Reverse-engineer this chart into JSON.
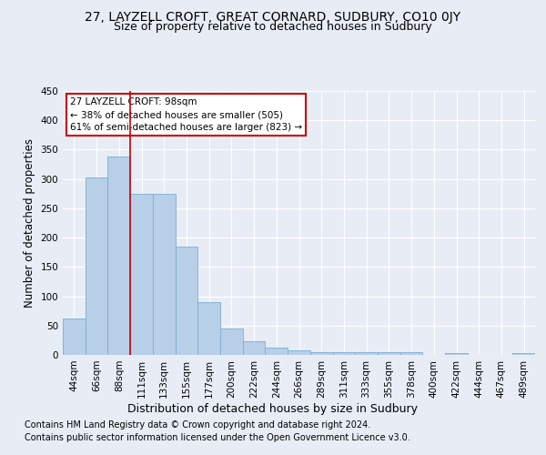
{
  "title": "27, LAYZELL CROFT, GREAT CORNARD, SUDBURY, CO10 0JY",
  "subtitle": "Size of property relative to detached houses in Sudbury",
  "xlabel": "Distribution of detached houses by size in Sudbury",
  "ylabel": "Number of detached properties",
  "categories": [
    "44sqm",
    "66sqm",
    "88sqm",
    "111sqm",
    "133sqm",
    "155sqm",
    "177sqm",
    "200sqm",
    "222sqm",
    "244sqm",
    "266sqm",
    "289sqm",
    "311sqm",
    "333sqm",
    "355sqm",
    "378sqm",
    "400sqm",
    "422sqm",
    "444sqm",
    "467sqm",
    "489sqm"
  ],
  "values": [
    62,
    303,
    338,
    275,
    275,
    185,
    90,
    45,
    23,
    13,
    7,
    5,
    5,
    5,
    4,
    4,
    0,
    3,
    0,
    0,
    3
  ],
  "bar_color": "#b8cfe8",
  "bar_edge_color": "#7aadd4",
  "vline_x": 2.5,
  "vline_color": "#cc0000",
  "annotation_title": "27 LAYZELL CROFT: 98sqm",
  "annotation_line1": "← 38% of detached houses are smaller (505)",
  "annotation_line2": "61% of semi-detached houses are larger (823) →",
  "annotation_box_facecolor": "#ffffff",
  "annotation_box_edge": "#cc0000",
  "ylim": [
    0,
    450
  ],
  "yticks": [
    0,
    50,
    100,
    150,
    200,
    250,
    300,
    350,
    400,
    450
  ],
  "footer_line1": "Contains HM Land Registry data © Crown copyright and database right 2024.",
  "footer_line2": "Contains public sector information licensed under the Open Government Licence v3.0.",
  "bg_color": "#e8edf5",
  "plot_bg_color": "#e8edf5",
  "grid_color": "#ffffff",
  "title_fontsize": 10,
  "subtitle_fontsize": 9,
  "xlabel_fontsize": 9,
  "ylabel_fontsize": 8.5,
  "tick_fontsize": 7.5,
  "annotation_fontsize": 7.5,
  "footer_fontsize": 7
}
